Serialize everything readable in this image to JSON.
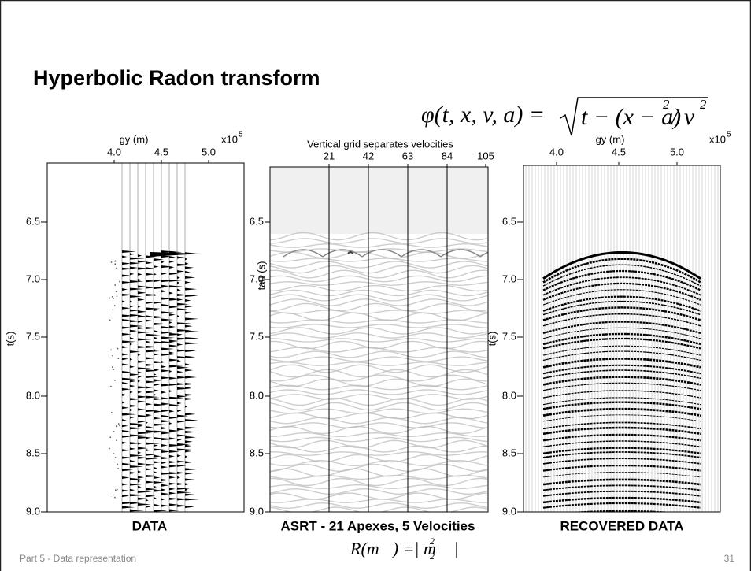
{
  "title": "Hyperbolic Radon transform",
  "formula": {
    "lhs": "φ(t, x, v, a) =",
    "rhs": "t − (x − a)",
    "exp1": "2",
    "div": "/ v",
    "exp2": "2"
  },
  "panels": [
    {
      "x_label": "gy (m)",
      "x_scale": "x10",
      "x_scale_exp": "5",
      "x_ticks": [
        "4.0",
        "4.5",
        "5.0"
      ],
      "y_label": "t(s)",
      "y_ticks": [
        "6.5",
        "7.0",
        "7.5",
        "8.0",
        "8.5",
        "9.0"
      ],
      "caption": "DATA"
    },
    {
      "x_label": "Vertical  grid separates velocities",
      "x_ticks": [
        "21",
        "42",
        "63",
        "84",
        "105"
      ],
      "y_label": "tau (s)",
      "y_ticks": [
        "6.5",
        "7.0",
        "7.5",
        "8.0",
        "8.5",
        "9.0"
      ],
      "caption": "ASRT - 21 Apexes, 5 Velocities",
      "caption_formula": {
        "main": "R(m⃗) =| m⃗ |",
        "sub": "2",
        "sup": "2"
      }
    },
    {
      "x_label": "gy (m)",
      "x_scale": "x10",
      "x_scale_exp": "5",
      "x_ticks": [
        "4.0",
        "4.5",
        "5.0"
      ],
      "y_label": "t(s)",
      "y_ticks": [
        "6.5",
        "7.0",
        "7.5",
        "8.0",
        "8.5",
        "9.0"
      ],
      "caption": "RECOVERED DATA"
    }
  ],
  "footer": {
    "left": "Part 5 - Data representation",
    "page": "31"
  }
}
